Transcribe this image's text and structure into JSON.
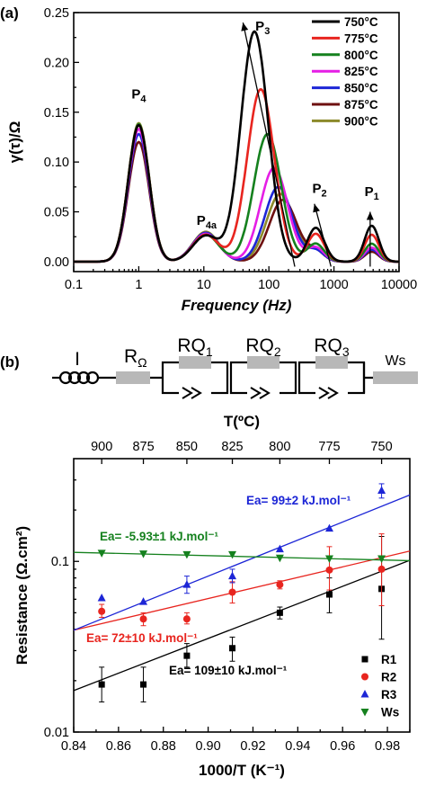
{
  "chart_data": [
    {
      "type": "line",
      "panel_label": "(a)",
      "xlabel": "Frequency (Hz)",
      "ylabel": "γ(τ)/Ω",
      "xscale": "log",
      "xlim": [
        0.1,
        10000
      ],
      "ylim": [
        -0.01,
        0.25
      ],
      "x_ticks": [
        "0.1",
        "1",
        "10",
        "100",
        "1000",
        "10000"
      ],
      "y_ticks": [
        "0.00",
        "0.05",
        "0.10",
        "0.15",
        "0.20",
        "0.25"
      ],
      "legend_position": "top-right",
      "peak_labels": [
        {
          "text": "P",
          "sub": "4",
          "x": 1,
          "y": 0.164
        },
        {
          "text": "P",
          "sub": "4a",
          "x": 10,
          "y": 0.037
        },
        {
          "text": "P",
          "sub": "3",
          "x": 80,
          "y": 0.232
        },
        {
          "text": "P",
          "sub": "2",
          "x": 600,
          "y": 0.069
        },
        {
          "text": "P",
          "sub": "1",
          "x": 3800,
          "y": 0.066
        }
      ],
      "series": [
        {
          "name": "750°C",
          "color": "#000000",
          "P4": 0.137,
          "P4a": 0.026,
          "P3": 0.231,
          "P3f": 60,
          "P2": 0.034,
          "P1": 0.036
        },
        {
          "name": "775°C",
          "color": "#e8251f",
          "P4": 0.137,
          "P4a": 0.027,
          "P3": 0.173,
          "P3f": 75,
          "P2": 0.028,
          "P1": 0.027
        },
        {
          "name": "800°C",
          "color": "#15811e",
          "P4": 0.138,
          "P4a": 0.027,
          "P3": 0.128,
          "P3f": 95,
          "P2": 0.018,
          "P1": 0.018
        },
        {
          "name": "825°C",
          "color": "#e51ee5",
          "P4": 0.133,
          "P4a": 0.028,
          "P3": 0.094,
          "P3f": 120,
          "P2": 0.014,
          "P1": 0.014
        },
        {
          "name": "850°C",
          "color": "#1d26d6",
          "P4": 0.128,
          "P4a": 0.029,
          "P3": 0.075,
          "P3f": 140,
          "P2": 0.011,
          "P1": 0.012
        },
        {
          "name": "875°C",
          "color": "#6e1010",
          "P4": 0.12,
          "P4a": 0.029,
          "P3": 0.062,
          "P3f": 165,
          "P2": 0.01,
          "P1": 0.01
        },
        {
          "name": "900°C",
          "color": "#8c8a2a",
          "P4": 0.139,
          "P4a": 0.03,
          "P3": 0.068,
          "P3f": 150,
          "P2": 0.011,
          "P1": 0.01
        }
      ]
    },
    {
      "type": "scatter",
      "panel_label": "(b)",
      "xlabel": "1000/T (K⁻¹)",
      "ylabel": "Resistance (Ω.cm²)",
      "top_axis_label": "T(ºC)",
      "yscale": "log",
      "xlim": [
        0.84,
        0.99
      ],
      "ylim": [
        0.01,
        0.4
      ],
      "x_ticks": [
        "0.84",
        "0.86",
        "0.88",
        "0.90",
        "0.92",
        "0.94",
        "0.96",
        "0.98"
      ],
      "y_ticks": [
        "0.01",
        "0.1"
      ],
      "top_ticks": [
        {
          "label": "900",
          "x": 0.8525
        },
        {
          "label": "875",
          "x": 0.8711
        },
        {
          "label": "850",
          "x": 0.8905
        },
        {
          "label": "825",
          "x": 0.9108
        },
        {
          "label": "800",
          "x": 0.932
        },
        {
          "label": "775",
          "x": 0.9541
        },
        {
          "label": "750",
          "x": 0.9774
        }
      ],
      "legend_position": "bottom-right",
      "x": [
        0.8525,
        0.8711,
        0.8905,
        0.9108,
        0.932,
        0.9541,
        0.9774
      ],
      "series": [
        {
          "name": "R1",
          "color": "#000000",
          "marker": "square",
          "values": [
            0.019,
            0.019,
            0.028,
            0.031,
            0.05,
            0.064,
            0.069
          ],
          "err_lo": [
            0.015,
            0.015,
            0.024,
            0.026,
            0.046,
            0.05,
            0.035
          ],
          "err_hi": [
            0.024,
            0.024,
            0.033,
            0.036,
            0.054,
            0.08,
            0.14
          ],
          "fit": [
            0.0175,
            0.1015
          ]
        },
        {
          "name": "R2",
          "color": "#e8251f",
          "marker": "circle",
          "values": [
            0.051,
            0.046,
            0.046,
            0.066,
            0.073,
            0.089,
            0.09
          ],
          "err_lo": [
            0.047,
            0.042,
            0.043,
            0.057,
            0.069,
            0.068,
            0.055
          ],
          "err_hi": [
            0.056,
            0.05,
            0.05,
            0.076,
            0.077,
            0.122,
            0.145
          ],
          "fit": [
            0.0395,
            0.115
          ]
        },
        {
          "name": "R3",
          "color": "#1d26d6",
          "marker": "triangle-up",
          "values": [
            0.061,
            0.058,
            0.073,
            0.082,
            0.118,
            0.156,
            0.26
          ],
          "err_lo": [
            0.061,
            0.058,
            0.065,
            0.075,
            0.118,
            0.156,
            0.235
          ],
          "err_hi": [
            0.061,
            0.058,
            0.082,
            0.09,
            0.118,
            0.156,
            0.285
          ],
          "fit": [
            0.0395,
            0.245
          ]
        },
        {
          "name": "Ws",
          "color": "#15811e",
          "marker": "triangle-down",
          "values": [
            0.112,
            0.111,
            0.11,
            0.11,
            0.105,
            0.104,
            0.104
          ],
          "err_lo": [
            0.112,
            0.111,
            0.11,
            0.11,
            0.105,
            0.104,
            0.104
          ],
          "err_hi": [
            0.112,
            0.111,
            0.11,
            0.11,
            0.105,
            0.104,
            0.104
          ],
          "fit": [
            0.113,
            0.101
          ]
        }
      ],
      "annotations": [
        {
          "text": "Ea= 99±2 kJ.mol⁻¹",
          "color": "#1d26d6"
        },
        {
          "text": "Ea= -5.93±1 kJ.mol⁻¹",
          "color": "#15811e"
        },
        {
          "text": "Ea= 72±10 kJ.mol⁻¹",
          "color": "#e8251f"
        },
        {
          "text": "Ea= 109±10 kJ.mol⁻¹",
          "color": "#000000"
        }
      ]
    }
  ],
  "circuit": {
    "inductor": "I",
    "ohmic": "R",
    "ohmic_sub": "Ω",
    "rq": [
      "RQ",
      "RQ",
      "RQ"
    ],
    "rq_subs": [
      "1",
      "2",
      "3"
    ],
    "warburg": "Ws"
  }
}
